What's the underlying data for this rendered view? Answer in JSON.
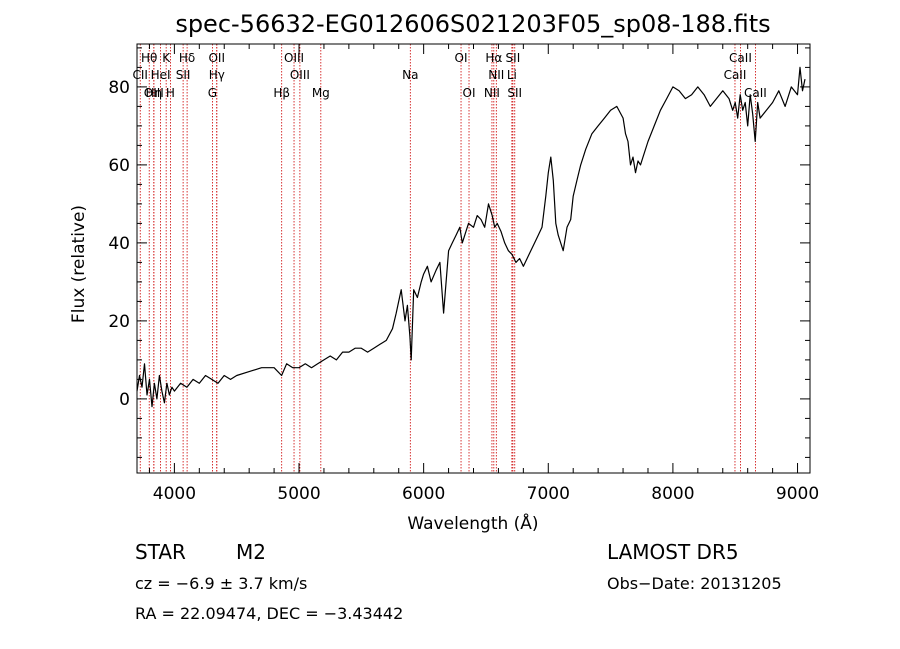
{
  "chart_data": {
    "type": "line",
    "title": "spec-56632-EG012606S021203F05_sp08-188.fits",
    "xlabel": "Wavelength (Å)",
    "ylabel": "Flux (relative)",
    "xlim": [
      3700,
      9100
    ],
    "ylim": [
      -19,
      91
    ],
    "xticks": [
      "4000",
      "5000",
      "6000",
      "7000",
      "8000",
      "9000"
    ],
    "xtick_values": [
      4000,
      5000,
      6000,
      7000,
      8000,
      9000
    ],
    "yticks": [
      "0",
      "20",
      "40",
      "60",
      "80"
    ],
    "ytick_values": [
      0,
      20,
      40,
      60,
      80
    ],
    "series": [
      {
        "x": [
          3700,
          3720,
          3740,
          3760,
          3780,
          3800,
          3820,
          3840,
          3860,
          3880,
          3900,
          3920,
          3940,
          3960,
          3980,
          4000,
          4050,
          4100,
          4150,
          4200,
          4250,
          4300,
          4350,
          4400,
          4450,
          4500,
          4600,
          4700,
          4800,
          4860,
          4900,
          4950,
          5000,
          5050,
          5100,
          5150,
          5200,
          5250,
          5300,
          5350,
          5400,
          5450,
          5500,
          5550,
          5600,
          5650,
          5700,
          5750,
          5780,
          5800,
          5820,
          5850,
          5870,
          5890,
          5900,
          5920,
          5950,
          5980,
          6000,
          6030,
          6060,
          6100,
          6130,
          6160,
          6200,
          6230,
          6260,
          6290,
          6310,
          6330,
          6360,
          6400,
          6430,
          6460,
          6490,
          6520,
          6550,
          6570,
          6590,
          6620,
          6650,
          6680,
          6710,
          6740,
          6770,
          6800,
          6830,
          6860,
          6890,
          6920,
          6950,
          6980,
          7000,
          7020,
          7040,
          7060,
          7080,
          7100,
          7120,
          7150,
          7180,
          7200,
          7230,
          7260,
          7300,
          7350,
          7400,
          7450,
          7500,
          7550,
          7600,
          7620,
          7640,
          7660,
          7680,
          7700,
          7720,
          7740,
          7760,
          7800,
          7850,
          7900,
          7950,
          8000,
          8050,
          8100,
          8150,
          8200,
          8250,
          8300,
          8350,
          8400,
          8450,
          8480,
          8500,
          8520,
          8540,
          8560,
          8580,
          8600,
          8620,
          8640,
          8660,
          8680,
          8700,
          8750,
          8800,
          8850,
          8900,
          8950,
          9000,
          9020,
          9040,
          9060
        ],
        "y": [
          2,
          6,
          3,
          9,
          1,
          5,
          -2,
          4,
          0,
          6,
          2,
          -1,
          4,
          1,
          3,
          2,
          4,
          3,
          5,
          4,
          6,
          5,
          4,
          6,
          5,
          6,
          7,
          8,
          8,
          6,
          9,
          8,
          8,
          9,
          8,
          9,
          10,
          11,
          10,
          12,
          12,
          13,
          13,
          12,
          13,
          14,
          15,
          18,
          22,
          25,
          28,
          20,
          24,
          16,
          10,
          28,
          26,
          30,
          32,
          34,
          30,
          33,
          35,
          22,
          38,
          40,
          42,
          44,
          40,
          42,
          45,
          44,
          47,
          46,
          44,
          50,
          47,
          44,
          45,
          43,
          40,
          38,
          37,
          35,
          36,
          34,
          36,
          38,
          40,
          42,
          44,
          52,
          58,
          62,
          56,
          45,
          42,
          40,
          38,
          44,
          46,
          52,
          56,
          60,
          64,
          68,
          70,
          72,
          74,
          75,
          72,
          68,
          66,
          60,
          62,
          58,
          61,
          60,
          62,
          66,
          70,
          74,
          77,
          80,
          79,
          77,
          78,
          80,
          78,
          75,
          77,
          79,
          77,
          74,
          76,
          72,
          78,
          74,
          76,
          70,
          78,
          73,
          66,
          76,
          72,
          74,
          76,
          79,
          75,
          80,
          78,
          85,
          79,
          82
        ],
        "color": "#000000"
      }
    ],
    "lines": [
      {
        "label": "Hθ",
        "x": 3798,
        "row": 0
      },
      {
        "label": "K",
        "x": 3934,
        "row": 0
      },
      {
        "label": "Hδ",
        "x": 4102,
        "row": 0
      },
      {
        "label": "OII",
        "x": 4340,
        "row": 0
      },
      {
        "label": "OIII",
        "x": 4960,
        "row": 0
      },
      {
        "label": "OI",
        "x": 6300,
        "row": 0
      },
      {
        "label": "Hα",
        "x": 6563,
        "row": 0
      },
      {
        "label": "SII",
        "x": 6716,
        "row": 0
      },
      {
        "label": "CaII",
        "x": 8542,
        "row": 0
      },
      {
        "label": "CII",
        "x": 3726,
        "row": 1
      },
      {
        "label": "HeI",
        "x": 3889,
        "row": 1
      },
      {
        "label": "SII",
        "x": 4070,
        "row": 1
      },
      {
        "label": "Hγ",
        "x": 4340,
        "row": 1
      },
      {
        "label": "OIII",
        "x": 5007,
        "row": 1
      },
      {
        "label": "NII",
        "x": 6583,
        "row": 1
      },
      {
        "label": "Li",
        "x": 6708,
        "row": 1
      },
      {
        "label": "CaII",
        "x": 8498,
        "row": 1
      },
      {
        "label": "OIII",
        "x": 3835,
        "row": 2
      },
      {
        "label": "Hη",
        "x": 3835,
        "row": 2
      },
      {
        "label": "H",
        "x": 3968,
        "row": 2
      },
      {
        "label": "G",
        "x": 4305,
        "row": 2
      },
      {
        "label": "Hβ",
        "x": 4861,
        "row": 2
      },
      {
        "label": "Mg",
        "x": 5175,
        "row": 2
      },
      {
        "label": "Na",
        "x": 5893,
        "row": 1
      },
      {
        "label": "OI",
        "x": 6364,
        "row": 2
      },
      {
        "label": "NII",
        "x": 6548,
        "row": 2
      },
      {
        "label": "SII",
        "x": 6731,
        "row": 2
      },
      {
        "label": "CaII",
        "x": 8662,
        "row": 2
      }
    ],
    "line_color": "#cc0000"
  },
  "info": {
    "object_class": "STAR",
    "subclass": "M2",
    "survey": "LAMOST DR5",
    "cz": "cz = −6.9 ± 3.7 km/s",
    "obs_date": "Obs−Date: 20131205",
    "coords": "RA =  22.09474, DEC =  −3.43442"
  }
}
